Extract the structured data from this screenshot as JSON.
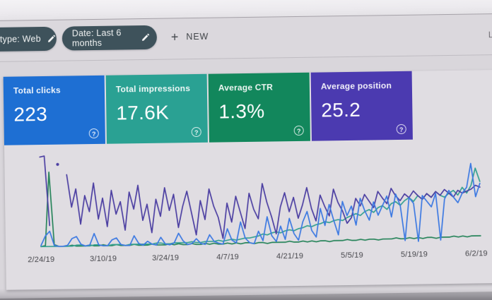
{
  "browser": {
    "right_edge_text": "La"
  },
  "filter_bar": {
    "chips": [
      {
        "label": "type: Web"
      },
      {
        "label": "Date: Last 6 months"
      }
    ],
    "new_button": {
      "plus": "+",
      "label": "NEW"
    }
  },
  "metric_cards": [
    {
      "id": "total-clicks",
      "label": "Total clicks",
      "value": "223",
      "color": "#1e6fd3",
      "help_icon": "?"
    },
    {
      "id": "total-impressions",
      "label": "Total impressions",
      "value": "17.6K",
      "color": "#2aa193",
      "help_icon": "?"
    },
    {
      "id": "average-ctr",
      "label": "Average CTR",
      "value": "1.3%",
      "color": "#12875c",
      "help_icon": "?"
    },
    {
      "id": "average-position",
      "label": "Average position",
      "value": "25.2",
      "color": "#4b3ab0",
      "help_icon": "?"
    }
  ],
  "chart_data": {
    "type": "line",
    "x_labels": [
      "2/24/19",
      "3/10/19",
      "3/24/19",
      "4/7/19",
      "4/21/19",
      "5/5/19",
      "5/19/19",
      "6/2/19"
    ],
    "x_label_positions_pct": [
      0,
      14.14,
      28.28,
      42.42,
      56.57,
      70.71,
      84.85,
      98.99
    ],
    "grid": false,
    "y_axis_visible": false,
    "legend": "none (series colors match metric cards)",
    "series": [
      {
        "name": "Average CTR",
        "color": "#27845a",
        "values": [
          2,
          3,
          80,
          4,
          2,
          2,
          2,
          3,
          2,
          2,
          2,
          3,
          2,
          2,
          3,
          2,
          2,
          3,
          2,
          2,
          2,
          3,
          2,
          2,
          2,
          3,
          2,
          2,
          2,
          3,
          2,
          3,
          2,
          2,
          3,
          2,
          2,
          3,
          2,
          3,
          2,
          2,
          3,
          2,
          3,
          2,
          3,
          3,
          2,
          3,
          3,
          2,
          3,
          3,
          3,
          3,
          4,
          3,
          3,
          4,
          3,
          4,
          3,
          4,
          4,
          3,
          4,
          4,
          4,
          5,
          4,
          4,
          5,
          4,
          5,
          5,
          4,
          5,
          5,
          5,
          6,
          5,
          5,
          6,
          5,
          6,
          5,
          6,
          6,
          5,
          6,
          6,
          6,
          7,
          6,
          7,
          6,
          7,
          7,
          7
        ]
      },
      {
        "name": "Total impressions",
        "color": "#35a192",
        "values": [
          2,
          2,
          2,
          2,
          2,
          2,
          2,
          2,
          3,
          3,
          2,
          2,
          3,
          3,
          2,
          2,
          3,
          3,
          3,
          2,
          3,
          3,
          3,
          3,
          3,
          3,
          4,
          4,
          3,
          3,
          4,
          4,
          4,
          4,
          5,
          4,
          4,
          5,
          5,
          5,
          6,
          5,
          6,
          7,
          6,
          7,
          8,
          8,
          9,
          10,
          12,
          11,
          13,
          14,
          13,
          15,
          16,
          15,
          17,
          18,
          20,
          19,
          21,
          22,
          24,
          23,
          25,
          26,
          25,
          28,
          30,
          32,
          30,
          34,
          36,
          33,
          38,
          40,
          36,
          42,
          44,
          40,
          45,
          48,
          44,
          50,
          46,
          52,
          48,
          54,
          50,
          48,
          52,
          55,
          50,
          58,
          52,
          60,
          78,
          64
        ]
      },
      {
        "name": "Average position",
        "color": "#4c3fa2",
        "values": [
          96,
          97,
          24,
          null,
          88,
          null,
          77,
          43,
          62,
          25,
          55,
          38,
          68,
          30,
          52,
          22,
          60,
          35,
          48,
          18,
          58,
          40,
          65,
          28,
          45,
          15,
          50,
          32,
          62,
          38,
          55,
          20,
          42,
          58,
          35,
          12,
          48,
          28,
          60,
          42,
          30,
          8,
          45,
          25,
          52,
          35,
          18,
          55,
          38,
          28,
          65,
          45,
          30,
          12,
          40,
          55,
          35,
          50,
          28,
          42,
          60,
          38,
          25,
          52,
          40,
          30,
          58,
          44,
          35,
          22,
          28,
          48,
          40,
          52,
          45,
          38,
          55,
          48,
          42,
          58,
          50,
          45,
          52,
          48,
          55,
          50,
          46,
          52,
          48,
          54,
          50,
          56,
          52,
          48,
          55,
          52,
          54,
          56,
          60,
          58
        ]
      },
      {
        "name": "Total clicks",
        "color": "#3c79e2",
        "values": [
          3,
          13,
          18,
          3,
          2,
          2,
          3,
          10,
          12,
          4,
          2,
          3,
          15,
          3,
          2,
          2,
          8,
          10,
          3,
          2,
          2,
          12,
          4,
          2,
          6,
          3,
          2,
          10,
          3,
          2,
          4,
          14,
          6,
          2,
          3,
          8,
          3,
          2,
          12,
          5,
          3,
          2,
          18,
          6,
          3,
          25,
          8,
          3,
          2,
          15,
          5,
          30,
          10,
          4,
          20,
          6,
          28,
          12,
          5,
          24,
          35,
          15,
          8,
          38,
          20,
          42,
          25,
          10,
          45,
          30,
          40,
          20,
          48,
          35,
          25,
          44,
          30,
          40,
          50,
          28,
          52,
          40,
          3,
          48,
          42,
          2,
          50,
          44,
          38,
          52,
          3,
          46,
          55,
          48,
          42,
          52,
          58,
          83,
          48,
          62
        ]
      }
    ]
  }
}
